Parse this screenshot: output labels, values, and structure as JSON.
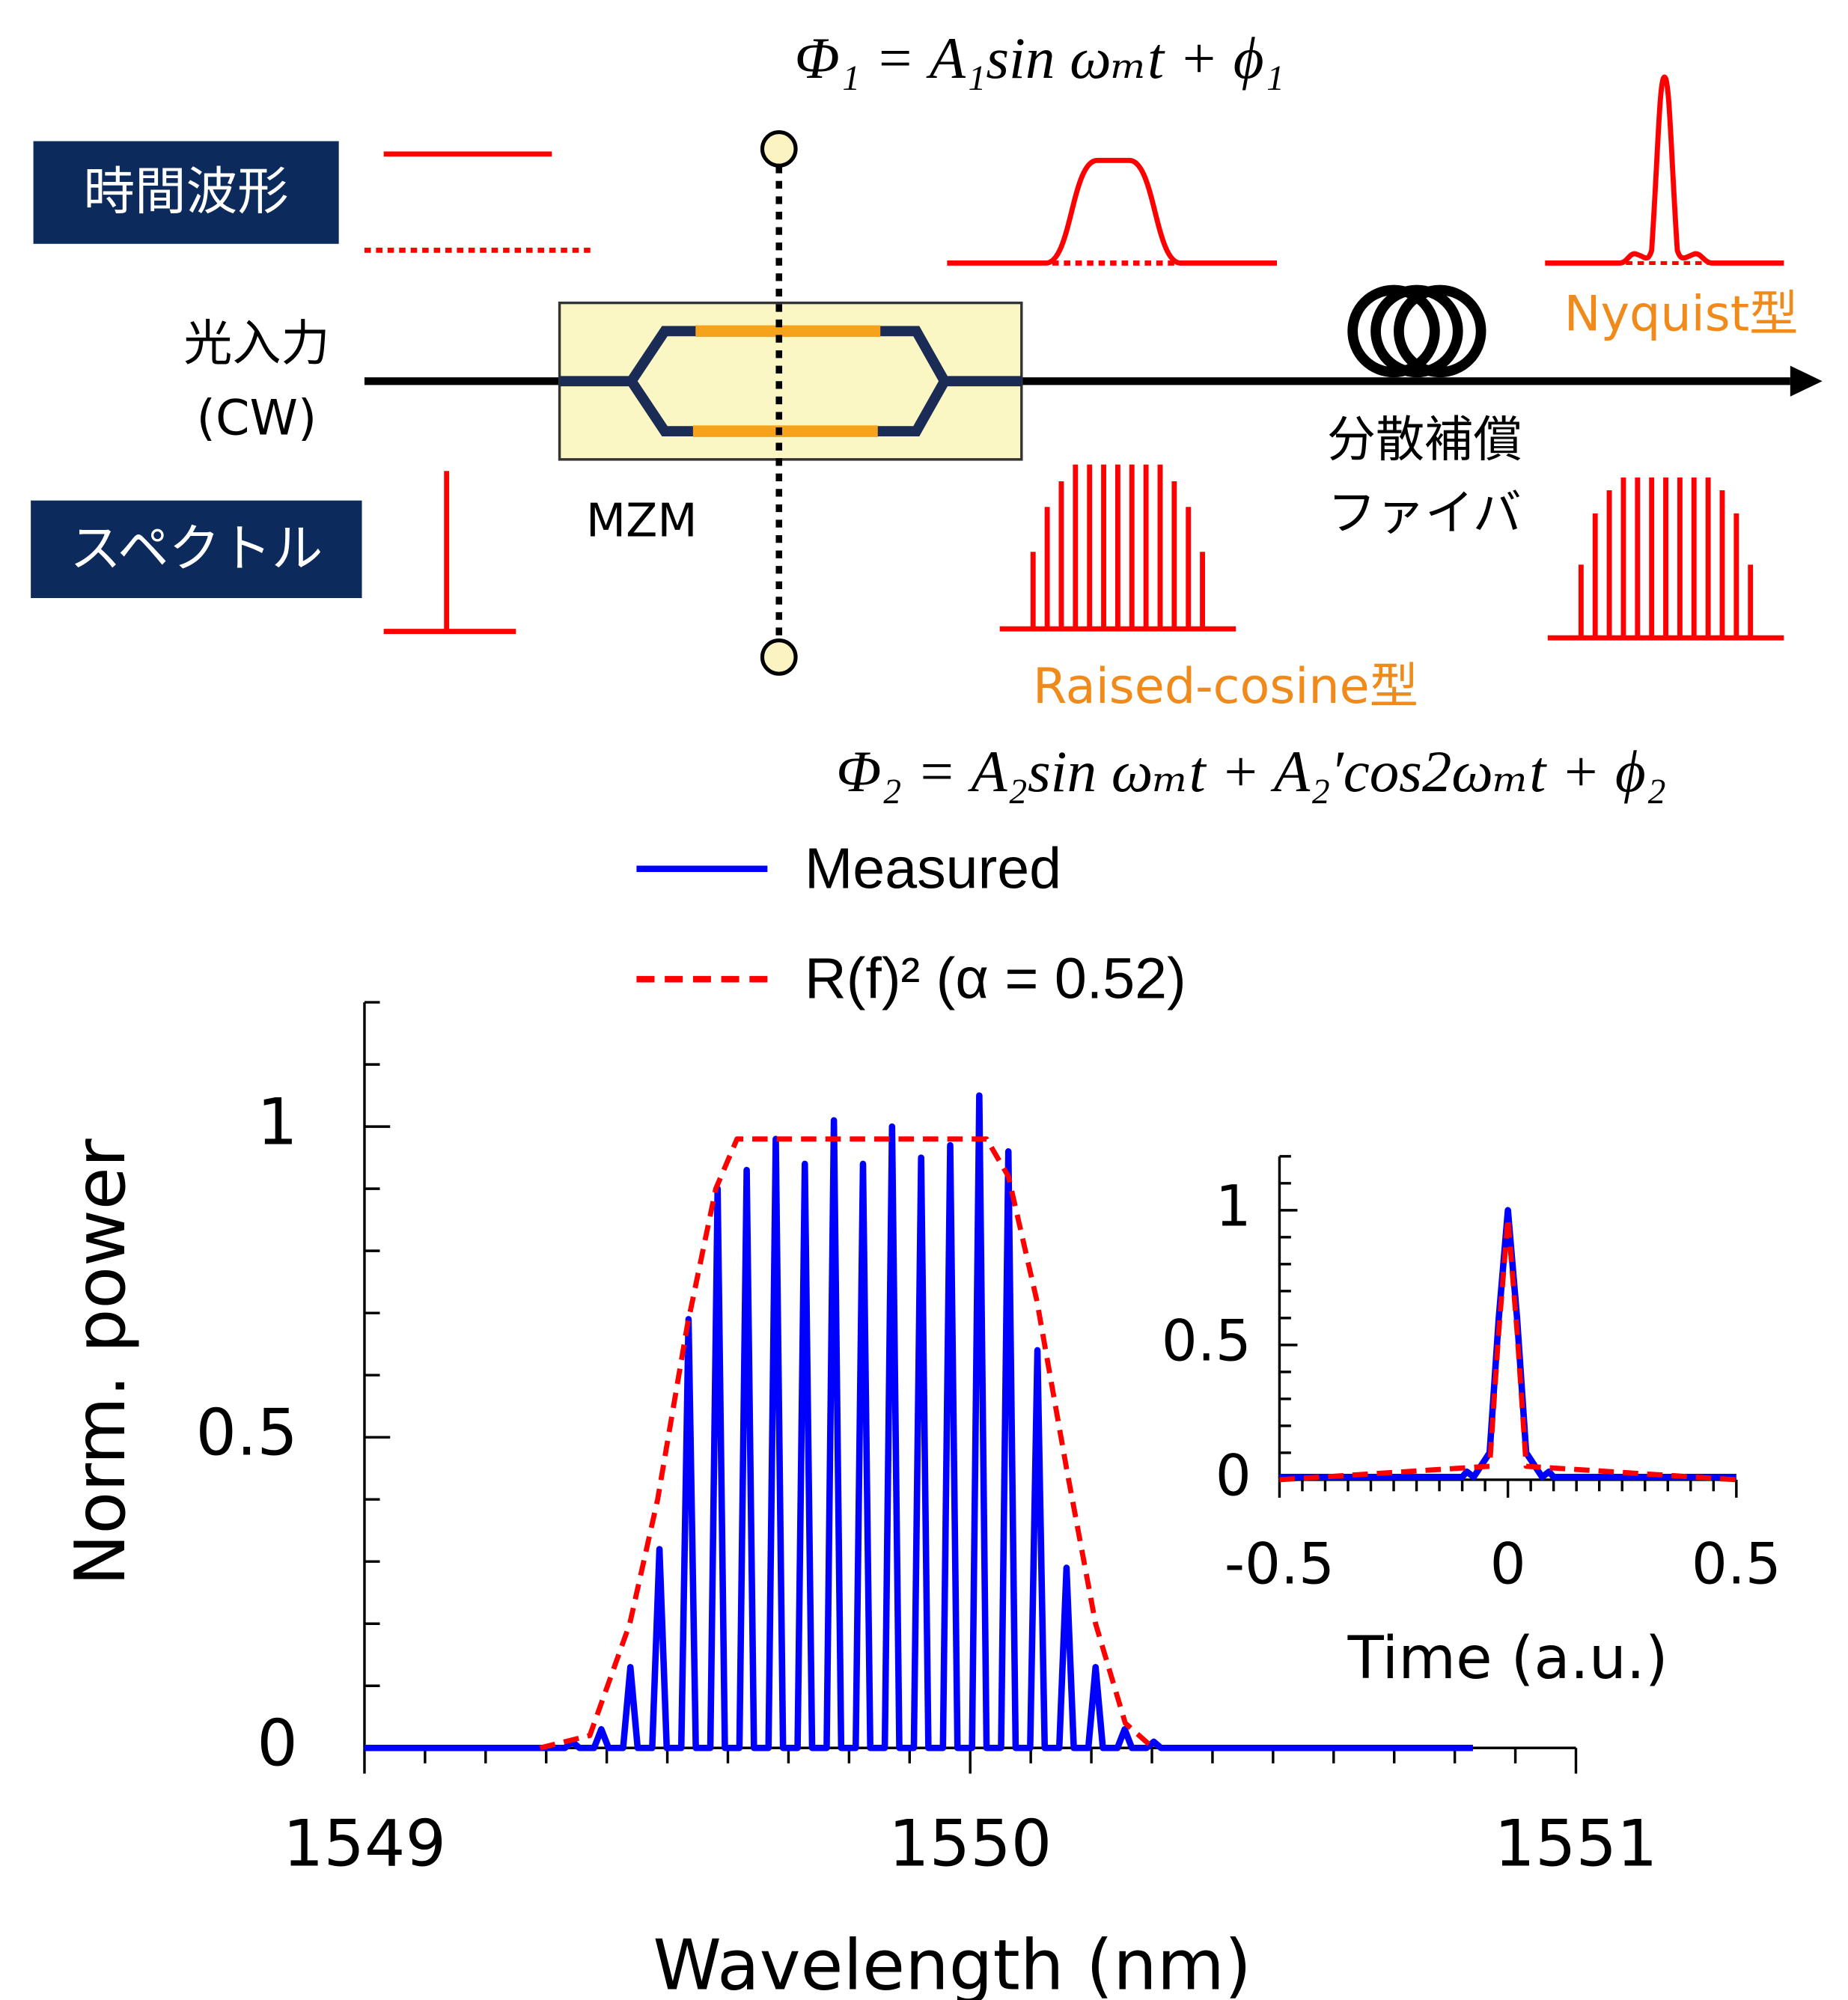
{
  "diagram": {
    "formula1": "Φ₁ = A₁sin ωₘt + ϕ₁",
    "formula2": "Φ₂ = A₂sin ωₘt + A₂′cos2ωₘt + ϕ₂",
    "label_waveform": "時間波形",
    "label_spectrum": "スペクトル",
    "input": "光入力",
    "input_cw": "(CW)",
    "mzm": "MZM",
    "fiber_line1": "分散補償",
    "fiber_line2": "ファイバ",
    "nyquist": "Nyquist型",
    "raised_cosine": "Raised-cosine型"
  },
  "chart_data": [
    {
      "type": "line",
      "xlabel": "Wavelength (nm)",
      "ylabel": "Norm. power",
      "xlim": [
        1549,
        1551
      ],
      "xticks": [
        1549,
        1550,
        1551
      ],
      "xminorticks": [
        1549.1,
        1549.2,
        1549.3,
        1549.4,
        1549.5,
        1549.6,
        1549.7,
        1549.8,
        1549.9,
        1550.1,
        1550.2,
        1550.3,
        1550.4,
        1550.5,
        1550.6,
        1550.7,
        1550.8,
        1550.9
      ],
      "ylim": [
        0,
        1.2
      ],
      "yticks": [
        0,
        0.5,
        1
      ],
      "yminorticks": [
        0.1,
        0.2,
        0.3,
        0.4,
        0.6,
        0.7,
        0.8,
        0.9,
        1.1,
        1.2
      ],
      "series": [
        {
          "name": "Measured",
          "color": "#0000ff",
          "style": "solid",
          "x": [
            1549,
            1549.331,
            1549.343,
            1549.355,
            1549.379,
            1549.391,
            1549.403,
            1549.427,
            1549.439,
            1549.451,
            1549.475,
            1549.487,
            1549.499,
            1549.523,
            1549.535,
            1549.547,
            1549.571,
            1549.583,
            1549.595,
            1549.619,
            1549.631,
            1549.643,
            1549.667,
            1549.679,
            1549.691,
            1549.715,
            1549.727,
            1549.739,
            1549.763,
            1549.775,
            1549.787,
            1549.811,
            1549.823,
            1549.835,
            1549.859,
            1549.871,
            1549.883,
            1549.907,
            1549.919,
            1549.931,
            1549.955,
            1549.967,
            1549.979,
            1550.003,
            1550.015,
            1550.027,
            1550.051,
            1550.063,
            1550.075,
            1550.099,
            1550.111,
            1550.123,
            1550.147,
            1550.159,
            1550.171,
            1550.195,
            1550.207,
            1550.219,
            1550.243,
            1550.255,
            1550.267,
            1550.291,
            1550.303,
            1550.315,
            1550.83
          ],
          "values": [
            0,
            0,
            0.01,
            0,
            0,
            0.03,
            0,
            0,
            0.13,
            0,
            0,
            0.32,
            0,
            0,
            0.69,
            0,
            0,
            0.9,
            0,
            0,
            0.93,
            0,
            0,
            0.98,
            0,
            0,
            0.94,
            0,
            0,
            1.01,
            0,
            0,
            0.94,
            0,
            0,
            1.0,
            0,
            0,
            0.95,
            0,
            0,
            0.97,
            0,
            0,
            1.05,
            0,
            0,
            0.96,
            0,
            0,
            0.64,
            0,
            0,
            0.29,
            0,
            0,
            0.13,
            0,
            0,
            0.03,
            0,
            0,
            0.01,
            0,
            0
          ]
        },
        {
          "name": "R(f)² (α = 0.52)",
          "color": "#ff0000",
          "style": "dashed",
          "x": [
            1549.29,
            1549.372,
            1549.438,
            1549.484,
            1549.533,
            1549.58,
            1549.615,
            1550.027,
            1550.063,
            1550.11,
            1550.159,
            1550.207,
            1550.256,
            1550.302
          ],
          "values": [
            0,
            0.02,
            0.2,
            0.4,
            0.68,
            0.9,
            0.98,
            0.98,
            0.92,
            0.72,
            0.45,
            0.2,
            0.04,
            0
          ]
        }
      ]
    },
    {
      "type": "line",
      "xlabel": "Time (a.u.)",
      "xlim": [
        -0.5,
        0.5
      ],
      "xticks": [
        -0.5,
        0,
        0.5
      ],
      "xminorticks": [
        -0.45,
        -0.4,
        -0.35,
        -0.3,
        -0.25,
        -0.2,
        -0.15,
        -0.1,
        -0.05,
        0.05,
        0.1,
        0.15,
        0.2,
        0.25,
        0.3,
        0.35,
        0.4,
        0.45
      ],
      "ylim": [
        0,
        1.2
      ],
      "yticks": [
        0,
        0.5,
        1
      ],
      "yminorticks": [
        0.1,
        0.2,
        0.3,
        0.4,
        0.6,
        0.7,
        0.8,
        0.9,
        1.1,
        1.2
      ],
      "series": [
        {
          "color": "#0000ff",
          "style": "solid",
          "x": [
            -0.5,
            -0.1,
            -0.09,
            -0.075,
            -0.04,
            -0.02,
            0,
            0.02,
            0.04,
            0.075,
            0.09,
            0.1,
            0.5
          ],
          "values": [
            0.01,
            0.01,
            0.03,
            0.01,
            0.1,
            0.6,
            1.0,
            0.6,
            0.1,
            0.01,
            0.03,
            0.01,
            0.01
          ]
        },
        {
          "color": "#ff0000",
          "style": "dashed",
          "x": [
            -0.5,
            -0.04,
            -0.02,
            0,
            0.02,
            0.04,
            0.5
          ],
          "values": [
            0,
            0.05,
            0.55,
            0.97,
            0.55,
            0.05,
            0
          ]
        }
      ]
    }
  ]
}
